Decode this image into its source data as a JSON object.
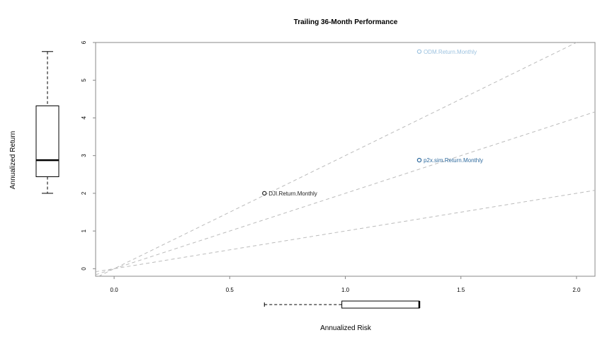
{
  "chart_data": {
    "type": "scatter",
    "title": "Trailing 36-Month Performance",
    "xlabel": "Annualized Risk",
    "ylabel": "Annualized Return",
    "xlim": [
      -0.08,
      2.08
    ],
    "ylim": [
      -0.2,
      6.0
    ],
    "x_ticks": [
      "0.0",
      "0.5",
      "1.0",
      "1.5",
      "2.0"
    ],
    "y_ticks": [
      "0",
      "1",
      "2",
      "3",
      "4",
      "5",
      "6"
    ],
    "grid": false,
    "points": [
      {
        "label": "DJI.Return.Monthly",
        "x": 0.65,
        "y": 2.0,
        "color": "#222222"
      },
      {
        "label": "p2x.sim.Return.Monthly",
        "x": 1.32,
        "y": 2.88,
        "color": "#2E6A9E"
      },
      {
        "label": "ODM.Return.Monthly",
        "x": 1.32,
        "y": 5.76,
        "color": "#9DC3E0"
      }
    ],
    "sharpe_lines": [
      {
        "slope": 1,
        "color": "#bbbbbb"
      },
      {
        "slope": 2,
        "color": "#bbbbbb"
      },
      {
        "slope": 3,
        "color": "#bbbbbb"
      }
    ],
    "boxplot_return": {
      "min": 2.0,
      "q1": 2.44,
      "median": 2.88,
      "q3": 4.32,
      "max": 5.76
    },
    "boxplot_risk": {
      "min": 0.65,
      "q1": 0.985,
      "median": 1.32,
      "q3": 1.32,
      "max": 1.32
    }
  }
}
